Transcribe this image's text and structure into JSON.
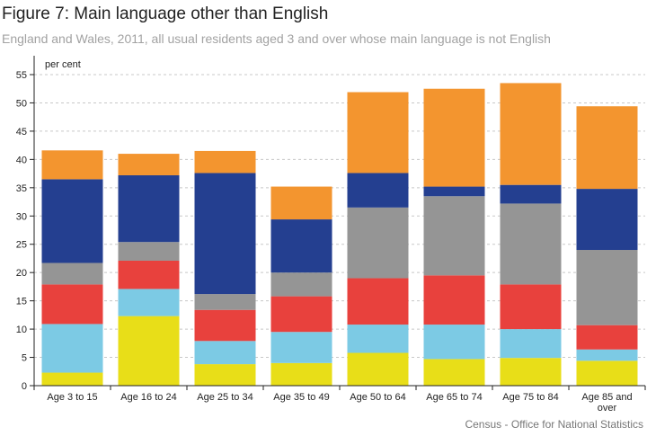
{
  "figure": {
    "title": "Figure 7: Main language other than English",
    "subtitle": "England and Wales, 2011, all usual residents aged 3 and over whose main language is not English",
    "source": "Census - Office for National Statistics"
  },
  "chart_data": {
    "type": "bar",
    "stacked": true,
    "title": "Figure 7: Main language other than English",
    "subtitle": "England and Wales, 2011, all usual residents aged 3 and over whose main language is not English",
    "xlabel": "",
    "ylabel": "per cent",
    "ylim": [
      0,
      55
    ],
    "yticks": [
      0,
      5,
      10,
      15,
      20,
      25,
      30,
      35,
      40,
      45,
      50,
      55
    ],
    "grid": true,
    "legend": "none",
    "categories": [
      "Age 3 to 15",
      "Age 16 to 24",
      "Age 25 to 34",
      "Age 35 to 49",
      "Age 50 to 64",
      "Age 65 to 74",
      "Age 75 to 84",
      "Age 85 and over"
    ],
    "category_lines": [
      [
        "Age 3 to 15"
      ],
      [
        "Age 16 to 24"
      ],
      [
        "Age 25 to 34"
      ],
      [
        "Age 35 to 49"
      ],
      [
        "Age 50 to 64"
      ],
      [
        "Age 65 to 74"
      ],
      [
        "Age 75 to 84"
      ],
      [
        "Age 85 and",
        "over"
      ]
    ],
    "series": [
      {
        "color": "#e8de18",
        "values": [
          2.3,
          12.3,
          3.8,
          4.0,
          5.8,
          4.7,
          4.9,
          4.4
        ]
      },
      {
        "color": "#7ccae4",
        "values": [
          8.6,
          4.8,
          4.1,
          5.5,
          5.0,
          6.1,
          5.1,
          2.0
        ]
      },
      {
        "color": "#e8413d",
        "values": [
          7.0,
          5.0,
          5.5,
          6.3,
          8.2,
          8.7,
          7.9,
          4.3
        ]
      },
      {
        "color": "#959595",
        "values": [
          3.8,
          3.3,
          2.8,
          4.2,
          12.5,
          14.0,
          14.3,
          13.3
        ]
      },
      {
        "color": "#243f90",
        "values": [
          14.8,
          11.8,
          21.4,
          9.4,
          6.1,
          1.7,
          3.3,
          10.8
        ]
      },
      {
        "color": "#f3952f",
        "values": [
          5.1,
          3.8,
          3.9,
          5.8,
          14.3,
          17.3,
          18.0,
          14.6
        ]
      }
    ]
  }
}
